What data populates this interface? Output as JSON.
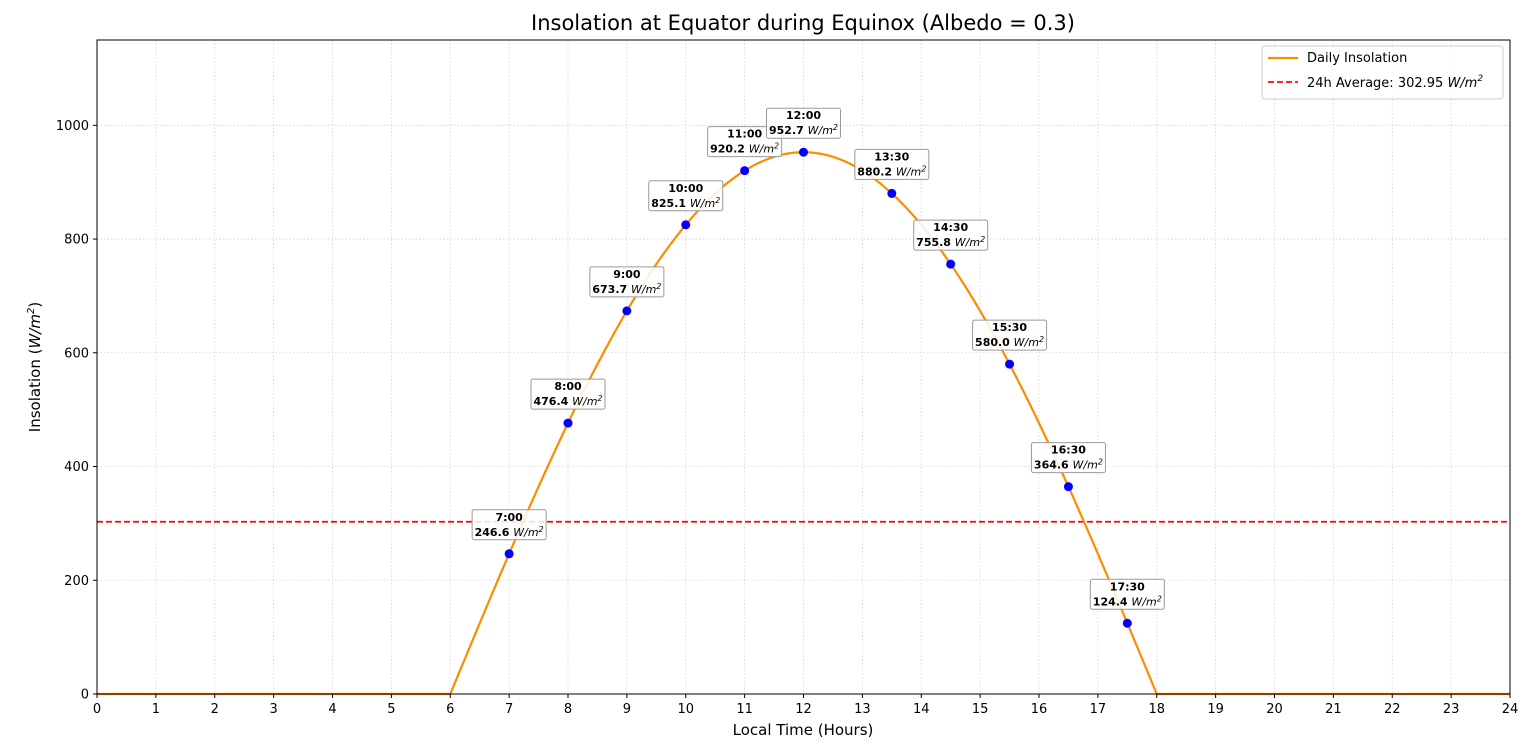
{
  "chart_data": {
    "type": "line",
    "title": "Insolation at Equator during Equinox (Albedo = 0.3)",
    "xlabel": "Local Time (Hours)",
    "ylabel_prefix": "Insolation (",
    "ylabel_unit": "W/m",
    "ylabel_suffix": ")",
    "unit_text": "W/m",
    "unit_sup": "2",
    "xlim": [
      0,
      24
    ],
    "ylim": [
      0,
      1150
    ],
    "xticks": [
      0,
      1,
      2,
      3,
      4,
      5,
      6,
      7,
      8,
      9,
      10,
      11,
      12,
      13,
      14,
      15,
      16,
      17,
      18,
      19,
      20,
      21,
      22,
      23,
      24
    ],
    "yticks": [
      0,
      200,
      400,
      600,
      800,
      1000
    ],
    "grid": true,
    "legend_position": "top-right",
    "series": [
      {
        "name": "Daily Insolation",
        "color": "#ff8c00",
        "style": "solid",
        "sunrise": 6,
        "sunset": 18,
        "peak": 952.7
      }
    ],
    "average": {
      "label_prefix": "24h Average: ",
      "value": 302.95,
      "color": "#ff0000",
      "style": "dashed"
    },
    "points": [
      {
        "x": 7,
        "time": "7:00",
        "value": 246.6,
        "label": "246.6"
      },
      {
        "x": 8,
        "time": "8:00",
        "value": 476.4,
        "label": "476.4"
      },
      {
        "x": 9,
        "time": "9:00",
        "value": 673.7,
        "label": "673.7"
      },
      {
        "x": 10,
        "time": "10:00",
        "value": 825.1,
        "label": "825.1"
      },
      {
        "x": 11,
        "time": "11:00",
        "value": 920.2,
        "label": "920.2"
      },
      {
        "x": 12,
        "time": "12:00",
        "value": 952.7,
        "label": "952.7"
      },
      {
        "x": 13.5,
        "time": "13:30",
        "value": 880.2,
        "label": "880.2"
      },
      {
        "x": 14.5,
        "time": "14:30",
        "value": 755.8,
        "label": "755.8"
      },
      {
        "x": 15.5,
        "time": "15:30",
        "value": 580.0,
        "label": "580.0"
      },
      {
        "x": 16.5,
        "time": "16:30",
        "value": 364.6,
        "label": "364.6"
      },
      {
        "x": 17.5,
        "time": "17:30",
        "value": 124.4,
        "label": "124.4"
      }
    ],
    "point_color": "#0000ff"
  }
}
